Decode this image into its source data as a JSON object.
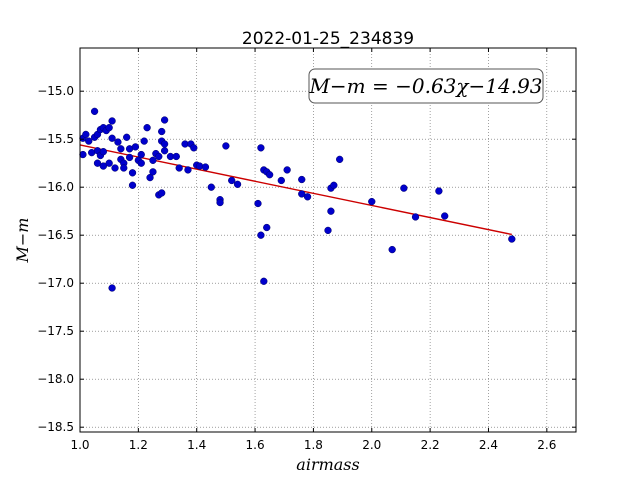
{
  "chart_data": {
    "type": "scatter",
    "title": "2022-01-25_234839",
    "xlabel": "airmass",
    "ylabel": "M−m",
    "xlim": [
      1.0,
      2.7
    ],
    "ylim": [
      -18.55,
      -14.55
    ],
    "x_ticks": [
      "1.0",
      "1.2",
      "1.4",
      "1.6",
      "1.8",
      "2.0",
      "2.2",
      "2.4",
      "2.6"
    ],
    "y_ticks": [
      "−15.0",
      "−15.5",
      "−16.0",
      "−16.5",
      "−17.0",
      "−17.5",
      "−18.0",
      "−18.5"
    ],
    "x_tick_values": [
      1.0,
      1.2,
      1.4,
      1.6,
      1.8,
      2.0,
      2.2,
      2.4,
      2.6
    ],
    "y_tick_values": [
      -15.0,
      -15.5,
      -16.0,
      -16.5,
      -17.0,
      -17.5,
      -18.0,
      -18.5
    ],
    "grid": true,
    "annotation": "M−m = −0.63χ−14.93",
    "point_color": "#0000cc",
    "fit_color": "#cc0000",
    "fit": {
      "slope": -0.63,
      "intercept": -14.93,
      "x_range": [
        1.0,
        2.48
      ]
    },
    "points": [
      {
        "x": 1.01,
        "y": -15.49
      },
      {
        "x": 1.01,
        "y": -15.66
      },
      {
        "x": 1.02,
        "y": -15.45
      },
      {
        "x": 1.03,
        "y": -15.52
      },
      {
        "x": 1.04,
        "y": -15.64
      },
      {
        "x": 1.05,
        "y": -15.48
      },
      {
        "x": 1.05,
        "y": -15.21
      },
      {
        "x": 1.06,
        "y": -15.45
      },
      {
        "x": 1.06,
        "y": -15.62
      },
      {
        "x": 1.06,
        "y": -15.75
      },
      {
        "x": 1.07,
        "y": -15.4
      },
      {
        "x": 1.07,
        "y": -15.67
      },
      {
        "x": 1.08,
        "y": -15.38
      },
      {
        "x": 1.08,
        "y": -15.63
      },
      {
        "x": 1.08,
        "y": -15.78
      },
      {
        "x": 1.09,
        "y": -15.41
      },
      {
        "x": 1.1,
        "y": -15.38
      },
      {
        "x": 1.1,
        "y": -15.75
      },
      {
        "x": 1.11,
        "y": -15.31
      },
      {
        "x": 1.11,
        "y": -15.49
      },
      {
        "x": 1.11,
        "y": -17.05
      },
      {
        "x": 1.12,
        "y": -15.8
      },
      {
        "x": 1.13,
        "y": -15.53
      },
      {
        "x": 1.14,
        "y": -15.6
      },
      {
        "x": 1.14,
        "y": -15.71
      },
      {
        "x": 1.15,
        "y": -15.75
      },
      {
        "x": 1.15,
        "y": -15.8
      },
      {
        "x": 1.16,
        "y": -15.48
      },
      {
        "x": 1.17,
        "y": -15.6
      },
      {
        "x": 1.17,
        "y": -15.69
      },
      {
        "x": 1.18,
        "y": -15.98
      },
      {
        "x": 1.18,
        "y": -15.85
      },
      {
        "x": 1.19,
        "y": -15.58
      },
      {
        "x": 1.2,
        "y": -15.72
      },
      {
        "x": 1.21,
        "y": -15.75
      },
      {
        "x": 1.21,
        "y": -15.66
      },
      {
        "x": 1.22,
        "y": -15.52
      },
      {
        "x": 1.23,
        "y": -15.38
      },
      {
        "x": 1.24,
        "y": -15.9
      },
      {
        "x": 1.25,
        "y": -15.84
      },
      {
        "x": 1.25,
        "y": -15.72
      },
      {
        "x": 1.26,
        "y": -15.65
      },
      {
        "x": 1.27,
        "y": -16.08
      },
      {
        "x": 1.27,
        "y": -15.68
      },
      {
        "x": 1.28,
        "y": -16.06
      },
      {
        "x": 1.28,
        "y": -15.52
      },
      {
        "x": 1.28,
        "y": -15.42
      },
      {
        "x": 1.29,
        "y": -15.3
      },
      {
        "x": 1.29,
        "y": -15.55
      },
      {
        "x": 1.29,
        "y": -15.62
      },
      {
        "x": 1.31,
        "y": -15.68
      },
      {
        "x": 1.33,
        "y": -15.68
      },
      {
        "x": 1.34,
        "y": -15.8
      },
      {
        "x": 1.36,
        "y": -15.55
      },
      {
        "x": 1.37,
        "y": -15.82
      },
      {
        "x": 1.38,
        "y": -15.55
      },
      {
        "x": 1.39,
        "y": -15.59
      },
      {
        "x": 1.4,
        "y": -15.77
      },
      {
        "x": 1.41,
        "y": -15.78
      },
      {
        "x": 1.43,
        "y": -15.79
      },
      {
        "x": 1.45,
        "y": -16.0
      },
      {
        "x": 1.48,
        "y": -16.13
      },
      {
        "x": 1.48,
        "y": -16.16
      },
      {
        "x": 1.5,
        "y": -15.57
      },
      {
        "x": 1.52,
        "y": -15.93
      },
      {
        "x": 1.54,
        "y": -15.97
      },
      {
        "x": 1.61,
        "y": -16.17
      },
      {
        "x": 1.62,
        "y": -16.5
      },
      {
        "x": 1.62,
        "y": -15.59
      },
      {
        "x": 1.63,
        "y": -15.82
      },
      {
        "x": 1.64,
        "y": -15.84
      },
      {
        "x": 1.64,
        "y": -16.42
      },
      {
        "x": 1.63,
        "y": -16.98
      },
      {
        "x": 1.65,
        "y": -15.87
      },
      {
        "x": 1.69,
        "y": -15.93
      },
      {
        "x": 1.71,
        "y": -15.82
      },
      {
        "x": 1.76,
        "y": -15.92
      },
      {
        "x": 1.76,
        "y": -16.07
      },
      {
        "x": 1.78,
        "y": -16.1
      },
      {
        "x": 1.85,
        "y": -16.45
      },
      {
        "x": 1.86,
        "y": -16.25
      },
      {
        "x": 1.86,
        "y": -16.01
      },
      {
        "x": 1.87,
        "y": -15.98
      },
      {
        "x": 1.89,
        "y": -15.71
      },
      {
        "x": 2.0,
        "y": -16.15
      },
      {
        "x": 2.07,
        "y": -16.65
      },
      {
        "x": 2.11,
        "y": -16.01
      },
      {
        "x": 2.15,
        "y": -16.31
      },
      {
        "x": 2.23,
        "y": -16.04
      },
      {
        "x": 2.25,
        "y": -16.3
      },
      {
        "x": 2.48,
        "y": -16.54
      }
    ]
  }
}
